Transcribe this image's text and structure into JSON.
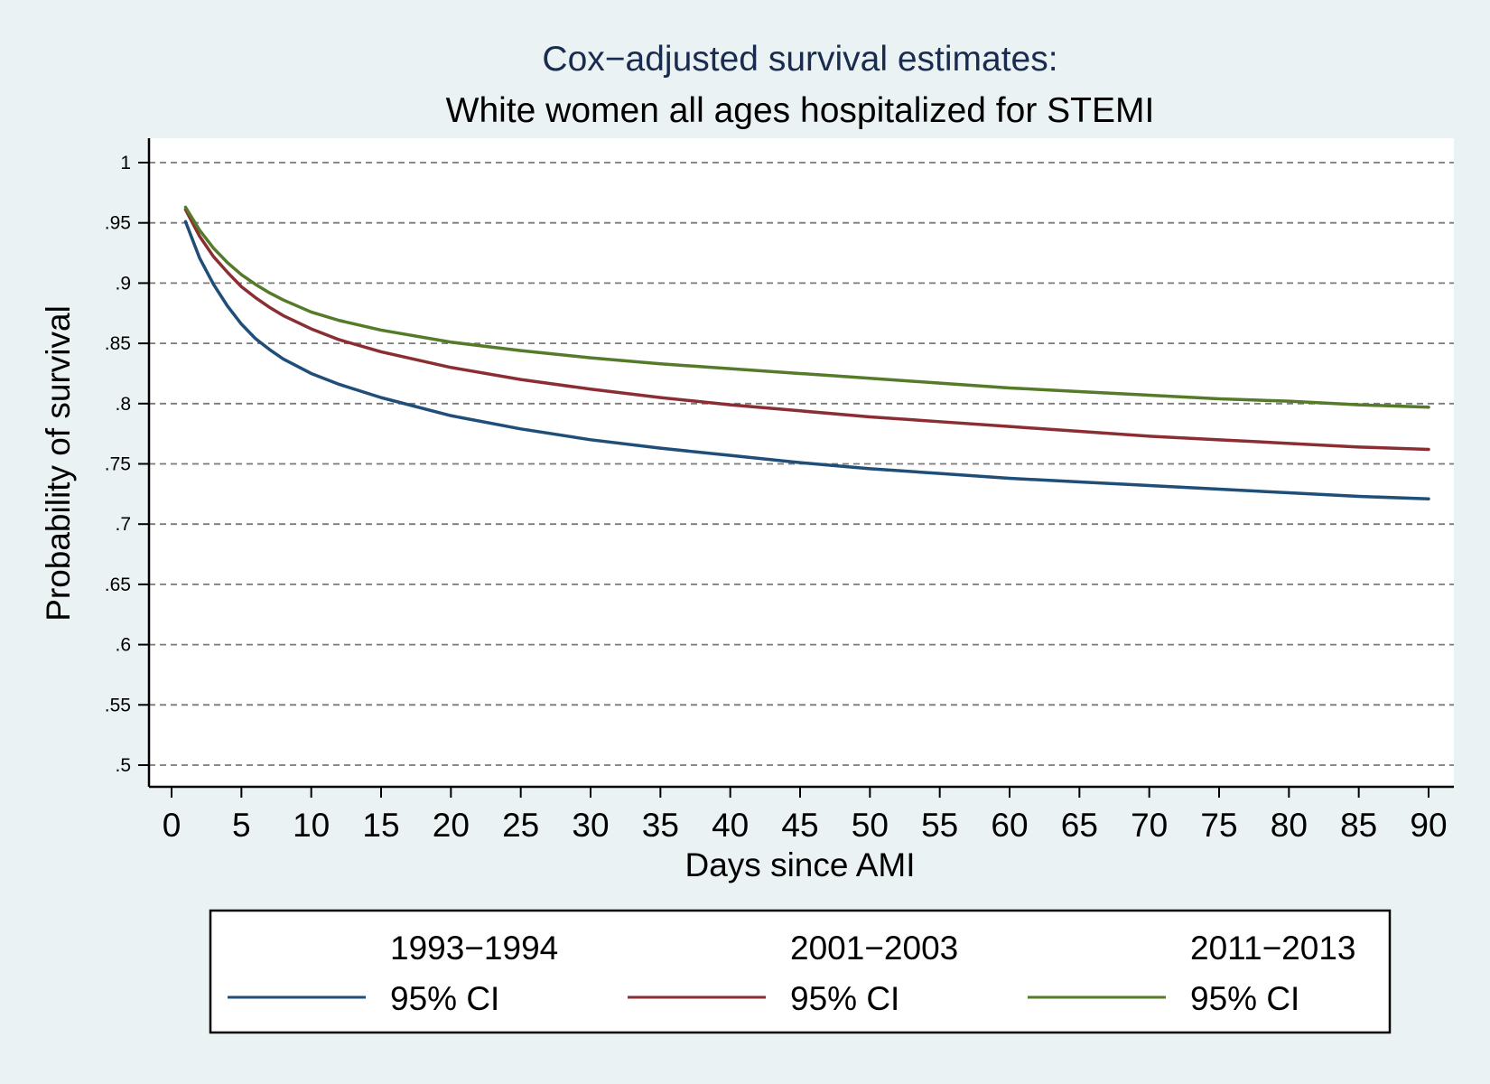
{
  "chart_data": {
    "type": "line",
    "title": "Cox−adjusted survival estimates:",
    "subtitle": "White women all ages hospitalized for STEMI",
    "xlabel": "Days since AMI",
    "ylabel": "Probability of survival",
    "xlim": [
      0,
      90
    ],
    "ylim": [
      0.5,
      1
    ],
    "x_ticks": [
      0,
      5,
      10,
      15,
      20,
      25,
      30,
      35,
      40,
      45,
      50,
      55,
      60,
      65,
      70,
      75,
      80,
      85,
      90
    ],
    "x_tick_labels": [
      "0",
      "5",
      "10",
      "15",
      "20",
      "25",
      "30",
      "35",
      "40",
      "45",
      "50",
      "55",
      "60",
      "65",
      "70",
      "75",
      "80",
      "85",
      "90"
    ],
    "y_ticks": [
      0.5,
      0.55,
      0.6,
      0.65,
      0.7,
      0.75,
      0.8,
      0.85,
      0.9,
      0.95,
      1
    ],
    "y_tick_labels": [
      ".5",
      ".55",
      ".6",
      ".65",
      ".7",
      ".75",
      ".8",
      ".85",
      ".9",
      ".95",
      "1"
    ],
    "grid": true,
    "legend_position": "bottom",
    "series": [
      {
        "name": "1993−1994",
        "ci_label": "95% CI",
        "color": "#1f4e79",
        "x": [
          1,
          2,
          3,
          4,
          5,
          6,
          7,
          8,
          10,
          12,
          15,
          20,
          25,
          30,
          35,
          40,
          45,
          50,
          55,
          60,
          65,
          70,
          75,
          80,
          85,
          90
        ],
        "y": [
          0.951,
          0.921,
          0.899,
          0.881,
          0.866,
          0.854,
          0.845,
          0.837,
          0.825,
          0.816,
          0.805,
          0.79,
          0.779,
          0.77,
          0.763,
          0.757,
          0.751,
          0.746,
          0.742,
          0.738,
          0.735,
          0.732,
          0.729,
          0.726,
          0.723,
          0.721
        ]
      },
      {
        "name": "2001−2003",
        "ci_label": "95% CI",
        "color": "#8b2e34",
        "x": [
          1,
          2,
          3,
          4,
          5,
          6,
          7,
          8,
          10,
          12,
          15,
          20,
          25,
          30,
          35,
          40,
          45,
          50,
          55,
          60,
          65,
          70,
          75,
          80,
          85,
          90
        ],
        "y": [
          0.961,
          0.939,
          0.922,
          0.909,
          0.897,
          0.888,
          0.88,
          0.873,
          0.862,
          0.853,
          0.843,
          0.83,
          0.82,
          0.812,
          0.805,
          0.799,
          0.794,
          0.789,
          0.785,
          0.781,
          0.777,
          0.773,
          0.77,
          0.767,
          0.764,
          0.762
        ]
      },
      {
        "name": "2011−2013",
        "ci_label": "95% CI",
        "color": "#557a2a",
        "x": [
          1,
          2,
          3,
          4,
          5,
          6,
          7,
          8,
          10,
          12,
          15,
          20,
          25,
          30,
          35,
          40,
          45,
          50,
          55,
          60,
          65,
          70,
          75,
          80,
          85,
          90
        ],
        "y": [
          0.963,
          0.944,
          0.929,
          0.917,
          0.907,
          0.899,
          0.892,
          0.886,
          0.876,
          0.869,
          0.861,
          0.851,
          0.844,
          0.838,
          0.833,
          0.829,
          0.825,
          0.821,
          0.817,
          0.813,
          0.81,
          0.807,
          0.804,
          0.802,
          0.799,
          0.797
        ]
      }
    ]
  }
}
